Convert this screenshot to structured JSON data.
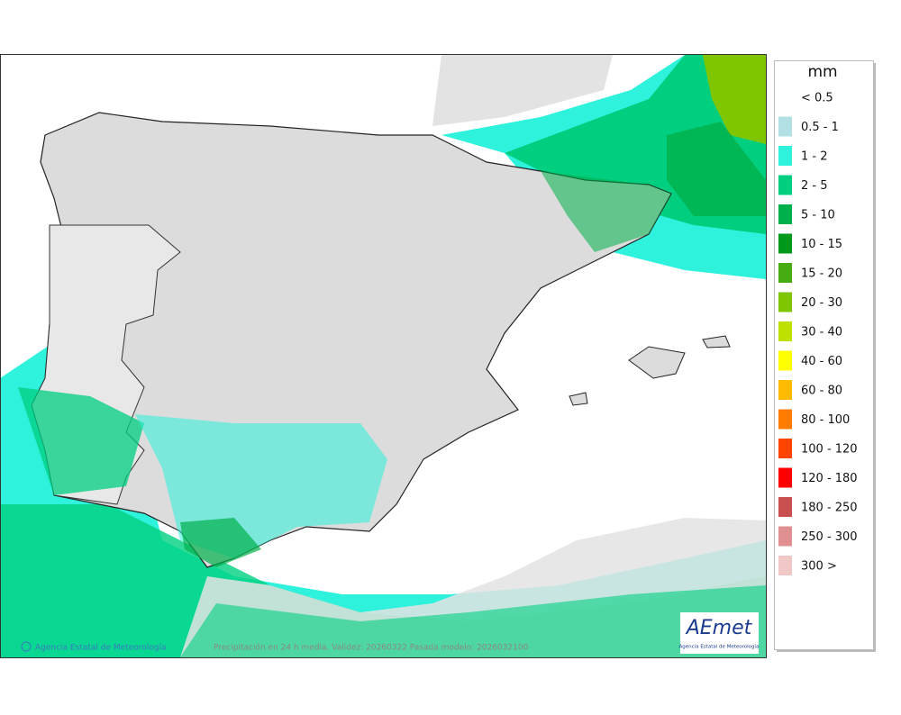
{
  "legend": {
    "unit": "mm",
    "items": [
      {
        "label": "< 0.5"
      },
      {
        "label": "0.5 - 1",
        "color": "#b3e0e5"
      },
      {
        "label": "1 - 2",
        "color": "#2ef2dc"
      },
      {
        "label": "2 - 5",
        "color": "#00cf80"
      },
      {
        "label": "5 - 10",
        "color": "#00b04a"
      },
      {
        "label": "10 - 15",
        "color": "#00981a"
      },
      {
        "label": "15 - 20",
        "color": "#45ad12"
      },
      {
        "label": "20 - 30",
        "color": "#7fc600"
      },
      {
        "label": "30 - 40",
        "color": "#c0e000"
      },
      {
        "label": "40 - 60",
        "color": "#ffff00"
      },
      {
        "label": "60 - 80",
        "color": "#ffbb00"
      },
      {
        "label": "80 - 100",
        "color": "#ff7c00"
      },
      {
        "label": "100 - 120",
        "color": "#ff4400"
      },
      {
        "label": "120 - 180",
        "color": "#ff0000"
      },
      {
        "label": "180 - 250",
        "color": "#c85050"
      },
      {
        "label": "250 - 300",
        "color": "#e09090"
      },
      {
        "label": "300 >",
        "color": "#f0c8c8"
      }
    ]
  },
  "footer": {
    "credit": "Agencia Estatal de Meteorología",
    "caption": "Precipitación en 24 h media. Validez: 20260322 Pasada modelo: 2026032100"
  },
  "logo": {
    "name": "AEmet",
    "subtitle": "Agencia Estatal de Meteorología"
  }
}
